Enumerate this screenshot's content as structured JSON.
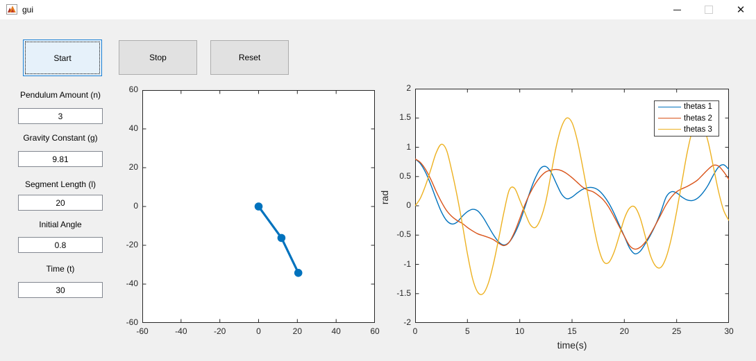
{
  "window": {
    "title": "gui",
    "controls": {
      "minimize": "minimize",
      "maximize": "maximize",
      "close": "✕"
    }
  },
  "buttons": {
    "start": "Start",
    "stop": "Stop",
    "reset": "Reset"
  },
  "form": {
    "fields": [
      {
        "label": "Pendulum Amount (n)",
        "value": "3"
      },
      {
        "label": "Gravity Constant (g)",
        "value": "9.81"
      },
      {
        "label": "Segment Length (l)",
        "value": "20"
      },
      {
        "label": "Initial Angle",
        "value": "0.8"
      },
      {
        "label": "Time (t)",
        "value": "30"
      }
    ]
  },
  "colors": {
    "matlab_blue": "#0072BD",
    "matlab_orange": "#D95319",
    "matlab_yellow": "#EDB120",
    "window_bg": "#f0f0f0",
    "axis": "#262626",
    "start_button_bg": "#e6f1fa",
    "start_button_border": "#1a7fd4"
  },
  "chart_data": [
    {
      "type": "line",
      "id": "pendulum-plot",
      "title": "",
      "xlabel": "",
      "ylabel": "",
      "xlim": [
        -60,
        60
      ],
      "ylim": [
        -60,
        60
      ],
      "xticks": [
        -60,
        -40,
        -20,
        0,
        20,
        40,
        60
      ],
      "yticks": [
        -60,
        -40,
        -20,
        0,
        20,
        40,
        60
      ],
      "grid": false,
      "series": [
        {
          "name": "pendulum",
          "color": "#0072BD",
          "marker": "circle",
          "x": [
            0,
            11.8,
            20.5
          ],
          "y": [
            0,
            -16.2,
            -34.2
          ]
        }
      ]
    },
    {
      "type": "line",
      "id": "thetas-plot",
      "title": "",
      "xlabel": "time(s)",
      "ylabel": "rad",
      "xlim": [
        0,
        30
      ],
      "ylim": [
        -2,
        2
      ],
      "xticks": [
        0,
        5,
        10,
        15,
        20,
        25,
        30
      ],
      "yticks": [
        -2,
        -1.5,
        -1,
        -0.5,
        0,
        0.5,
        1,
        1.5,
        2
      ],
      "grid": false,
      "legend_position": "top-right",
      "x": [
        0,
        0.5,
        1,
        1.5,
        2,
        2.5,
        3,
        3.5,
        4,
        4.5,
        5,
        5.5,
        6,
        6.5,
        7,
        7.5,
        8,
        8.5,
        9,
        9.5,
        10,
        10.5,
        11,
        11.5,
        12,
        12.5,
        13,
        13.5,
        14,
        14.5,
        15,
        15.5,
        16,
        16.5,
        17,
        17.5,
        18,
        18.5,
        19,
        19.5,
        20,
        20.5,
        21,
        21.5,
        22,
        22.5,
        23,
        23.5,
        24,
        24.5,
        25,
        25.5,
        26,
        26.5,
        27,
        27.5,
        28,
        28.5,
        29,
        29.5,
        30
      ],
      "series": [
        {
          "name": "thetas 1",
          "color": "#0072BD",
          "values": [
            0.8,
            0.72,
            0.57,
            0.36,
            0.12,
            -0.1,
            -0.25,
            -0.31,
            -0.28,
            -0.18,
            -0.1,
            -0.06,
            -0.09,
            -0.2,
            -0.35,
            -0.5,
            -0.62,
            -0.67,
            -0.62,
            -0.48,
            -0.28,
            -0.02,
            0.25,
            0.48,
            0.64,
            0.67,
            0.57,
            0.38,
            0.2,
            0.12,
            0.15,
            0.22,
            0.28,
            0.31,
            0.31,
            0.27,
            0.18,
            0.05,
            -0.12,
            -0.32,
            -0.52,
            -0.72,
            -0.82,
            -0.78,
            -0.65,
            -0.5,
            -0.32,
            -0.1,
            0.15,
            0.24,
            0.22,
            0.15,
            0.1,
            0.09,
            0.13,
            0.22,
            0.35,
            0.52,
            0.66,
            0.7,
            0.62
          ]
        },
        {
          "name": "thetas 2",
          "color": "#D95319",
          "values": [
            0.8,
            0.74,
            0.62,
            0.45,
            0.25,
            0.07,
            -0.08,
            -0.18,
            -0.25,
            -0.3,
            -0.37,
            -0.43,
            -0.48,
            -0.51,
            -0.54,
            -0.58,
            -0.64,
            -0.68,
            -0.62,
            -0.45,
            -0.22,
            0.02,
            0.22,
            0.38,
            0.5,
            0.58,
            0.61,
            0.62,
            0.6,
            0.55,
            0.48,
            0.4,
            0.32,
            0.27,
            0.24,
            0.18,
            0.1,
            -0.02,
            -0.18,
            -0.35,
            -0.52,
            -0.68,
            -0.74,
            -0.71,
            -0.62,
            -0.48,
            -0.32,
            -0.15,
            0.02,
            0.15,
            0.24,
            0.29,
            0.33,
            0.38,
            0.44,
            0.53,
            0.62,
            0.69,
            0.68,
            0.58,
            0.45
          ]
        },
        {
          "name": "thetas 3",
          "color": "#EDB120",
          "values": [
            0.0,
            0.13,
            0.35,
            0.62,
            0.9,
            1.05,
            0.95,
            0.6,
            0.18,
            -0.3,
            -0.82,
            -1.25,
            -1.48,
            -1.5,
            -1.32,
            -0.98,
            -0.55,
            -0.1,
            0.27,
            0.3,
            0.1,
            -0.12,
            -0.32,
            -0.37,
            -0.22,
            0.08,
            0.55,
            1.02,
            1.35,
            1.5,
            1.42,
            1.12,
            0.68,
            0.2,
            -0.28,
            -0.7,
            -0.95,
            -0.97,
            -0.8,
            -0.52,
            -0.22,
            -0.04,
            -0.02,
            -0.2,
            -0.52,
            -0.85,
            -1.03,
            -1.05,
            -0.88,
            -0.55,
            -0.1,
            0.4,
            0.9,
            1.28,
            1.45,
            1.38,
            1.1,
            0.68,
            0.25,
            -0.08,
            -0.25
          ]
        }
      ]
    }
  ]
}
